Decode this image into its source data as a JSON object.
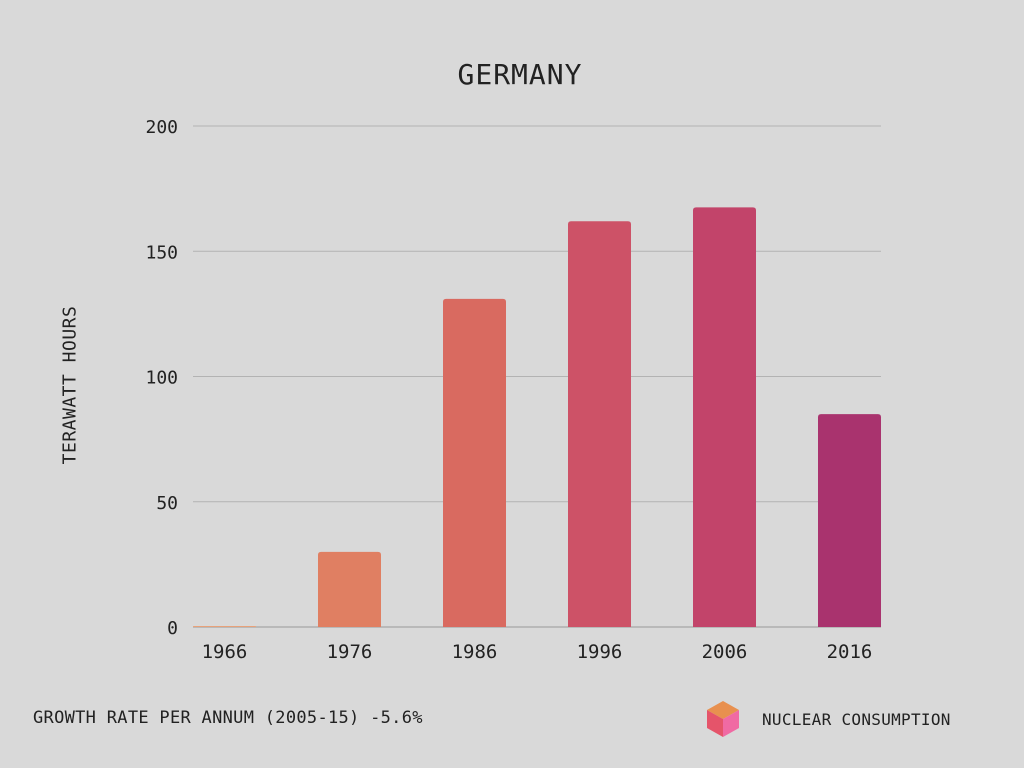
{
  "chart_data": {
    "type": "bar",
    "title": "GERMANY",
    "ylabel": "TERAWATT HOURS",
    "xlabel": "",
    "categories": [
      "1966",
      "1976",
      "1986",
      "1996",
      "2006",
      "2016"
    ],
    "series": [
      {
        "name": "NUCLEAR CONSUMPTION",
        "values": [
          0.2,
          30,
          131,
          162,
          167.5,
          85
        ]
      }
    ],
    "bar_colors": [
      "#e8a27a",
      "#e07f62",
      "#d96a60",
      "#cd5267",
      "#c2446a",
      "#a9336e"
    ],
    "ylim": [
      0,
      200
    ],
    "yticks": [
      0,
      50,
      100,
      150,
      200
    ],
    "grid": true,
    "legend": "bottom-right"
  },
  "footer": {
    "growth_note": "GROWTH RATE PER ANNUM (2005-15) -5.6%",
    "legend_label": "NUCLEAR CONSUMPTION"
  },
  "legend_icon": {
    "name": "cube-icon",
    "colors": [
      "#e8904f",
      "#e5546a",
      "#f06aa3"
    ]
  },
  "colors": {
    "background": "#d9d9d9",
    "grid": "#b3b3b3",
    "axis": "#999999",
    "text": "#222222"
  }
}
